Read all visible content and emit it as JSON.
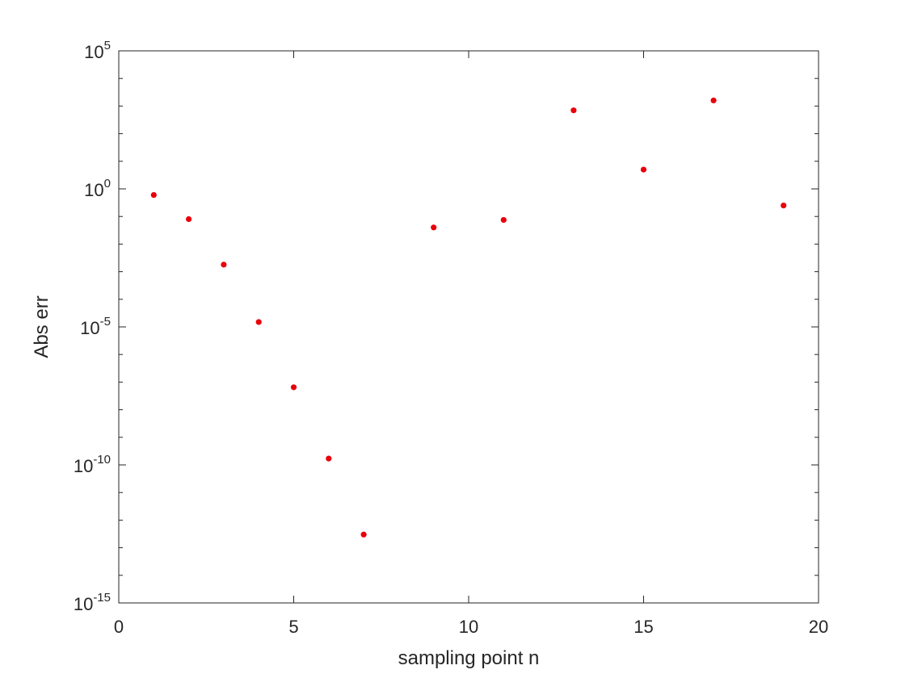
{
  "chart_data": {
    "type": "scatter",
    "xlabel": "sampling point n",
    "ylabel": "Abs err",
    "xlim": [
      0,
      20
    ],
    "ylim": [
      1e-15,
      100000.0
    ],
    "yscale": "log",
    "xticks": [
      0,
      5,
      10,
      15,
      20
    ],
    "yticks": [
      {
        "value": 1e-15,
        "base": "10",
        "exp": "-15"
      },
      {
        "value": 1e-10,
        "base": "10",
        "exp": "-10"
      },
      {
        "value": 1e-05,
        "base": "10",
        "exp": "-5"
      },
      {
        "value": 1,
        "base": "10",
        "exp": "0"
      },
      {
        "value": 100000.0,
        "base": "10",
        "exp": "5"
      }
    ],
    "grid": false,
    "box": true,
    "marker_color": "#e8000b",
    "x": [
      1,
      2,
      3,
      4,
      5,
      6,
      7,
      9,
      11,
      13,
      15,
      17,
      19
    ],
    "y": [
      0.6,
      0.08,
      0.0018,
      1.5e-05,
      6.5e-08,
      1.7e-10,
      3e-13,
      0.04,
      0.075,
      700,
      5,
      1600,
      0.25
    ]
  }
}
